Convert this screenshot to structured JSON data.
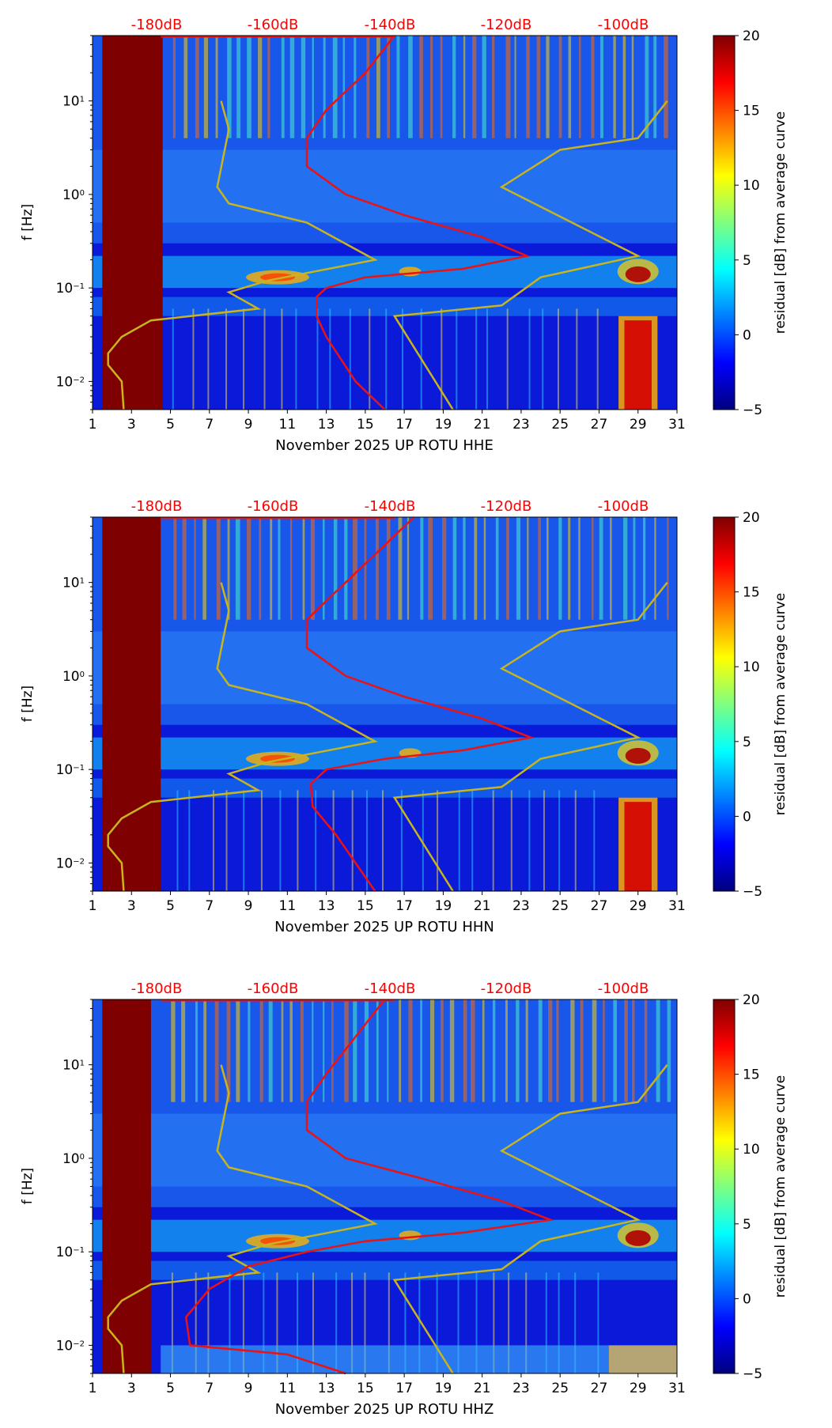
{
  "figure": {
    "ylabel": "f [Hz]",
    "colorbar": {
      "label": "residual [dB] from average curve",
      "ticks": [
        "20",
        "15",
        "10",
        "5",
        "0",
        "−5"
      ],
      "range": [
        -5,
        20
      ],
      "colors": [
        "#00007f",
        "#0000ff",
        "#007fff",
        "#00ffff",
        "#7fff7f",
        "#ffff00",
        "#ff7f00",
        "#ff0000",
        "#7f0000"
      ]
    },
    "top_axis_ticks": [
      "-180dB",
      "-160dB",
      "-140dB",
      "-120dB",
      "-100dB"
    ],
    "x_ticks": [
      "1",
      "3",
      "5",
      "7",
      "9",
      "11",
      "13",
      "15",
      "17",
      "19",
      "21",
      "23",
      "25",
      "27",
      "29",
      "31"
    ],
    "y_ticks": [
      "10",
      "10",
      "10",
      "10"
    ],
    "y_exps": [
      "1",
      "0",
      "−1",
      "−2"
    ],
    "colors": {
      "red_curve": "#ee1111",
      "yellow_curve": "#c8b41e",
      "top_label": "#ff0000"
    }
  },
  "chart_data": [
    {
      "type": "heatmap",
      "title": "November 2025 UP ROTU  HHE",
      "xlabel": "November 2025 UP ROTU  HHE",
      "ylabel": "f [Hz]",
      "xlim": [
        1,
        31
      ],
      "ylim_hz": [
        0.005,
        50
      ],
      "yscale": "log",
      "zlim": [
        -5,
        20
      ],
      "saturated_gap_days": [
        1.5,
        4.6
      ],
      "noise_model_top_axis_db": [
        -180,
        -160,
        -140,
        -120,
        -100
      ],
      "average_psd_curve": {
        "color": "red",
        "points_day_vs_hz": [
          [
            16.5,
            50
          ],
          [
            15,
            20
          ],
          [
            13,
            8
          ],
          [
            12,
            4
          ],
          [
            12,
            2
          ],
          [
            14,
            1
          ],
          [
            17,
            0.6
          ],
          [
            21,
            0.35
          ],
          [
            23.3,
            0.22
          ],
          [
            20,
            0.16
          ],
          [
            15,
            0.13
          ],
          [
            13,
            0.1
          ],
          [
            12.5,
            0.08
          ],
          [
            12.5,
            0.05
          ],
          [
            13,
            0.03
          ],
          [
            14.5,
            0.01
          ],
          [
            16,
            0.005
          ]
        ]
      },
      "low_noise_model": {
        "color": "yellow",
        "points_day_vs_hz": [
          [
            7.6,
            10
          ],
          [
            8,
            5
          ],
          [
            7.4,
            1.2
          ],
          [
            8,
            0.8
          ],
          [
            12,
            0.5
          ],
          [
            15.5,
            0.2
          ],
          [
            10,
            0.12
          ],
          [
            8,
            0.09
          ],
          [
            9.5,
            0.06
          ],
          [
            4,
            0.045
          ],
          [
            2.5,
            0.03
          ],
          [
            1.8,
            0.02
          ],
          [
            1.8,
            0.015
          ],
          [
            2.5,
            0.01
          ],
          [
            2.6,
            0.005
          ]
        ]
      },
      "high_noise_model": {
        "color": "yellow",
        "points_day_vs_hz": [
          [
            30.5,
            10
          ],
          [
            29,
            4
          ],
          [
            25,
            3
          ],
          [
            22,
            1.2
          ],
          [
            29,
            0.22
          ],
          [
            24,
            0.13
          ],
          [
            22,
            0.065
          ],
          [
            16.5,
            0.05
          ],
          [
            19.5,
            0.005
          ]
        ]
      }
    },
    {
      "type": "heatmap",
      "title": "November 2025 UP ROTU  HHN",
      "xlabel": "November 2025 UP ROTU  HHN",
      "ylabel": "f [Hz]",
      "xlim": [
        1,
        31
      ],
      "ylim_hz": [
        0.005,
        50
      ],
      "yscale": "log",
      "zlim": [
        -5,
        20
      ],
      "saturated_gap_days": [
        1.5,
        4.5
      ],
      "noise_model_top_axis_db": [
        -180,
        -160,
        -140,
        -120,
        -100
      ],
      "average_psd_curve": {
        "color": "red",
        "points_day_vs_hz": [
          [
            17.5,
            50
          ],
          [
            15.5,
            20
          ],
          [
            13.5,
            8
          ],
          [
            12,
            4
          ],
          [
            12,
            2
          ],
          [
            14,
            1
          ],
          [
            17,
            0.6
          ],
          [
            21,
            0.35
          ],
          [
            23.5,
            0.22
          ],
          [
            20,
            0.16
          ],
          [
            16,
            0.13
          ],
          [
            13,
            0.1
          ],
          [
            12.2,
            0.07
          ],
          [
            12.3,
            0.04
          ],
          [
            13.5,
            0.02
          ],
          [
            15.5,
            0.005
          ]
        ]
      },
      "low_noise_model": {
        "color": "yellow",
        "points_day_vs_hz": [
          [
            7.6,
            10
          ],
          [
            8,
            5
          ],
          [
            7.4,
            1.2
          ],
          [
            8,
            0.8
          ],
          [
            12,
            0.5
          ],
          [
            15.5,
            0.2
          ],
          [
            10,
            0.12
          ],
          [
            8,
            0.09
          ],
          [
            9.5,
            0.06
          ],
          [
            4,
            0.045
          ],
          [
            2.5,
            0.03
          ],
          [
            1.8,
            0.02
          ],
          [
            1.8,
            0.015
          ],
          [
            2.5,
            0.01
          ],
          [
            2.6,
            0.005
          ]
        ]
      },
      "high_noise_model": {
        "color": "yellow",
        "points_day_vs_hz": [
          [
            30.5,
            10
          ],
          [
            29,
            4
          ],
          [
            25,
            3
          ],
          [
            22,
            1.2
          ],
          [
            29,
            0.22
          ],
          [
            24,
            0.13
          ],
          [
            22,
            0.065
          ],
          [
            16.5,
            0.05
          ],
          [
            19.5,
            0.005
          ]
        ]
      }
    },
    {
      "type": "heatmap",
      "title": "November 2025 UP ROTU  HHZ",
      "xlabel": "November 2025 UP ROTU  HHZ",
      "ylabel": "f [Hz]",
      "xlim": [
        1,
        31
      ],
      "ylim_hz": [
        0.005,
        50
      ],
      "yscale": "log",
      "zlim": [
        -5,
        20
      ],
      "saturated_gap_days": [
        1.5,
        4.0
      ],
      "noise_model_top_axis_db": [
        -180,
        -160,
        -140,
        -120,
        -100
      ],
      "average_psd_curve": {
        "color": "red",
        "points_day_vs_hz": [
          [
            16,
            50
          ],
          [
            14.5,
            20
          ],
          [
            13,
            8
          ],
          [
            12,
            4
          ],
          [
            12,
            2
          ],
          [
            14,
            1
          ],
          [
            18,
            0.6
          ],
          [
            22,
            0.35
          ],
          [
            24.5,
            0.22
          ],
          [
            20,
            0.16
          ],
          [
            15,
            0.13
          ],
          [
            12,
            0.1
          ],
          [
            9,
            0.07
          ],
          [
            7,
            0.04
          ],
          [
            5.8,
            0.02
          ],
          [
            6,
            0.01
          ],
          [
            11,
            0.008
          ],
          [
            14,
            0.005
          ]
        ]
      },
      "low_noise_model": {
        "color": "yellow",
        "points_day_vs_hz": [
          [
            7.6,
            10
          ],
          [
            8,
            5
          ],
          [
            7.4,
            1.2
          ],
          [
            8,
            0.8
          ],
          [
            12,
            0.5
          ],
          [
            15.5,
            0.2
          ],
          [
            10,
            0.12
          ],
          [
            8,
            0.09
          ],
          [
            9.5,
            0.06
          ],
          [
            4,
            0.045
          ],
          [
            2.5,
            0.03
          ],
          [
            1.8,
            0.02
          ],
          [
            1.8,
            0.015
          ],
          [
            2.5,
            0.01
          ],
          [
            2.6,
            0.005
          ]
        ]
      },
      "high_noise_model": {
        "color": "yellow",
        "points_day_vs_hz": [
          [
            30.5,
            10
          ],
          [
            29,
            4
          ],
          [
            25,
            3
          ],
          [
            22,
            1.2
          ],
          [
            29,
            0.22
          ],
          [
            24,
            0.13
          ],
          [
            22,
            0.065
          ],
          [
            16.5,
            0.05
          ],
          [
            19.5,
            0.005
          ]
        ]
      }
    }
  ]
}
